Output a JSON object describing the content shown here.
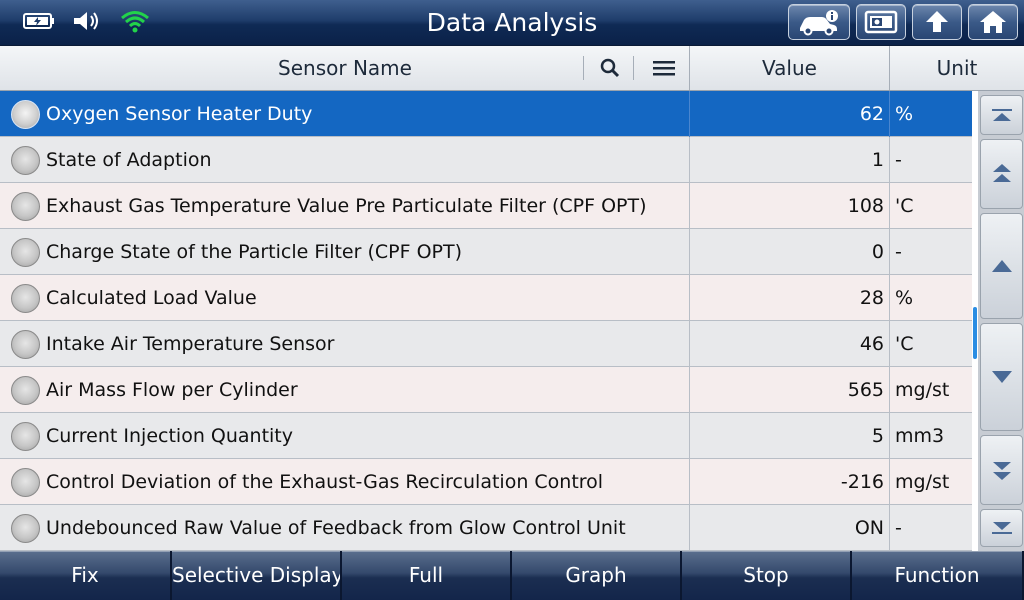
{
  "app": {
    "title": "Data Analysis",
    "status_icons": [
      "battery-icon",
      "speaker-icon",
      "wifi-icon"
    ],
    "top_buttons": [
      "vehicle-info-icon",
      "screenshot-icon",
      "back-up-icon",
      "home-icon"
    ]
  },
  "header": {
    "sensor_name": "Sensor Name",
    "value": "Value",
    "unit": "Unit",
    "icons": [
      "search-icon",
      "menu-icon"
    ]
  },
  "rows": [
    {
      "name": "Oxygen Sensor Heater Duty",
      "value": "62",
      "unit": "%",
      "selected": true
    },
    {
      "name": "State of Adaption",
      "value": "1",
      "unit": "-",
      "selected": false
    },
    {
      "name": "Exhaust Gas Temperature Value Pre Particulate Filter (CPF OPT)",
      "value": "108",
      "unit": "'C",
      "selected": false
    },
    {
      "name": "Charge State of the Particle Filter (CPF OPT)",
      "value": "0",
      "unit": "-",
      "selected": false
    },
    {
      "name": "Calculated Load Value",
      "value": "28",
      "unit": "%",
      "selected": false
    },
    {
      "name": "Intake Air Temperature Sensor",
      "value": "46",
      "unit": "'C",
      "selected": false
    },
    {
      "name": "Air Mass Flow per Cylinder",
      "value": "565",
      "unit": "mg/st",
      "selected": false
    },
    {
      "name": "Current Injection Quantity",
      "value": "5",
      "unit": "mm3",
      "selected": false
    },
    {
      "name": "Control Deviation of the Exhaust-Gas Recirculation Control",
      "value": "-216",
      "unit": "mg/st",
      "selected": false
    },
    {
      "name": "Undebounced Raw Value of Feedback from Glow Control Unit",
      "value": "ON",
      "unit": "-",
      "selected": false
    }
  ],
  "side_buttons": [
    "scroll-top-icon",
    "page-up-icon",
    "scroll-up-icon",
    "scroll-down-icon",
    "page-down-icon",
    "scroll-bottom-icon"
  ],
  "bottom_buttons": [
    "Fix",
    "Selective Display",
    "Full",
    "Graph",
    "Stop",
    "Function"
  ],
  "colors": {
    "title_bar": "#1f3d6b",
    "selected_row": "#1467c2",
    "wifi": "#22d34a",
    "scroll_thumb": "#2a8de3"
  }
}
